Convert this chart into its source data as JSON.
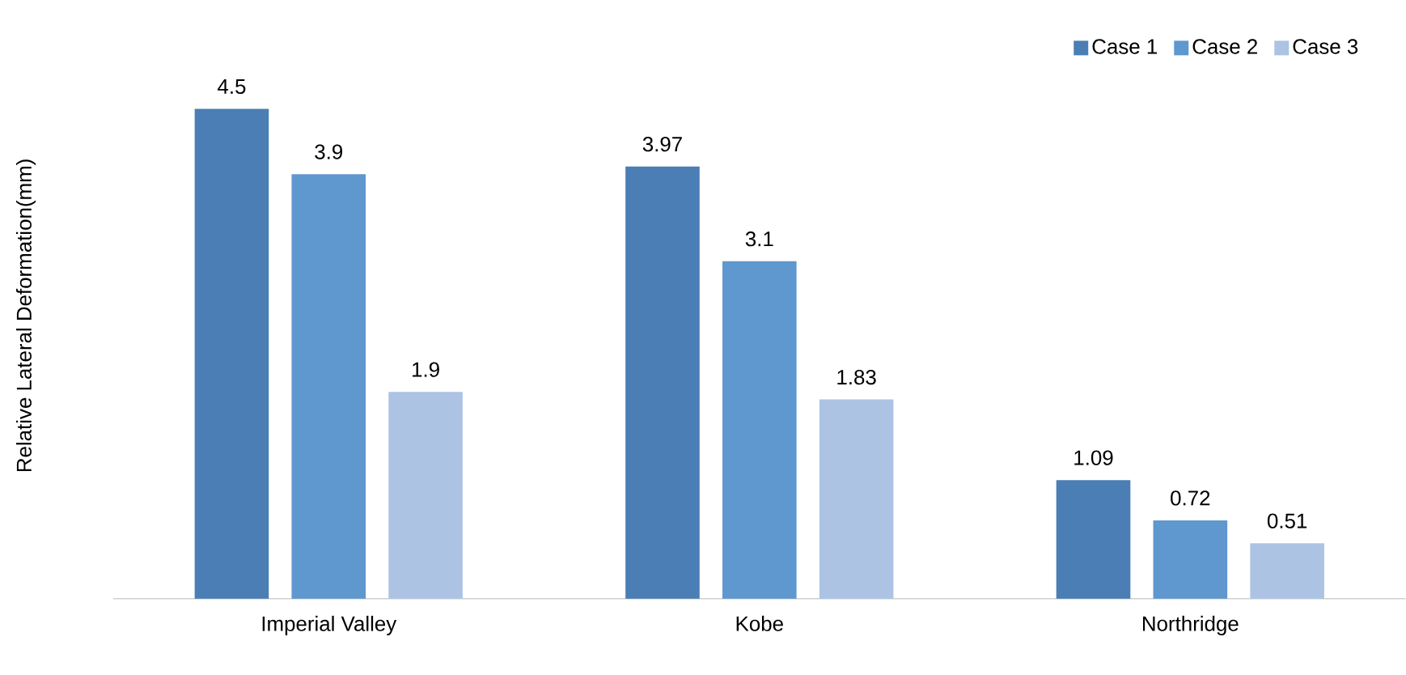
{
  "chart_data": {
    "type": "bar",
    "ylabel": "Relative Lateral Deformation(mm)",
    "categories": [
      "Imperial Valley",
      "Kobe",
      "Northridge"
    ],
    "series": [
      {
        "name": "Case 1",
        "color": "#4a7eb4",
        "values": [
          4.5,
          3.97,
          1.09
        ]
      },
      {
        "name": "Case 2",
        "color": "#5f97cf",
        "values": [
          3.9,
          3.1,
          0.72
        ]
      },
      {
        "name": "Case 3",
        "color": "#adc3e4",
        "values": [
          1.9,
          1.83,
          0.51
        ]
      }
    ],
    "data_labels": true,
    "legend": "top right"
  }
}
